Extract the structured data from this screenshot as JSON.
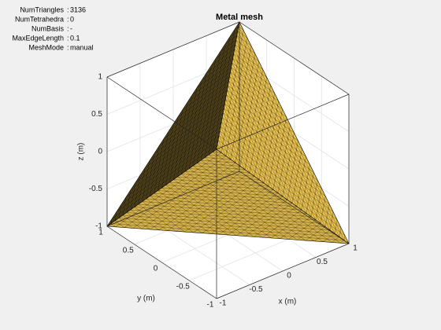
{
  "chart_data": {
    "type": "mesh3d",
    "title": "Metal mesh",
    "xlabel": "x (m)",
    "ylabel": "y (m)",
    "zlabel": "z (m)",
    "xlim": [
      -1,
      1
    ],
    "ylim": [
      -1,
      1
    ],
    "zlim": [
      -1,
      1
    ],
    "xticks": [
      -1,
      -0.5,
      0,
      0.5,
      1
    ],
    "yticks": [
      -1,
      -0.5,
      0,
      0.5,
      1
    ],
    "zticks": [
      -1,
      -0.5,
      0,
      0.5,
      1
    ],
    "grid": true,
    "color": "#e6c050",
    "vertices": [
      [
        1,
        1,
        1
      ],
      [
        -1,
        1,
        -1
      ],
      [
        1,
        -1,
        -1
      ],
      [
        -1,
        -1,
        1
      ]
    ],
    "info": {
      "separator": ":",
      "rows": [
        {
          "label": "NumTriangles",
          "value": 3136
        },
        {
          "label": "NumTetrahedra",
          "value": 0
        },
        {
          "label": "NumBasis",
          "value": "-"
        },
        {
          "label": "MaxEdgeLength",
          "value": 0.1
        },
        {
          "label": "MeshMode",
          "value": "manual"
        }
      ]
    }
  }
}
